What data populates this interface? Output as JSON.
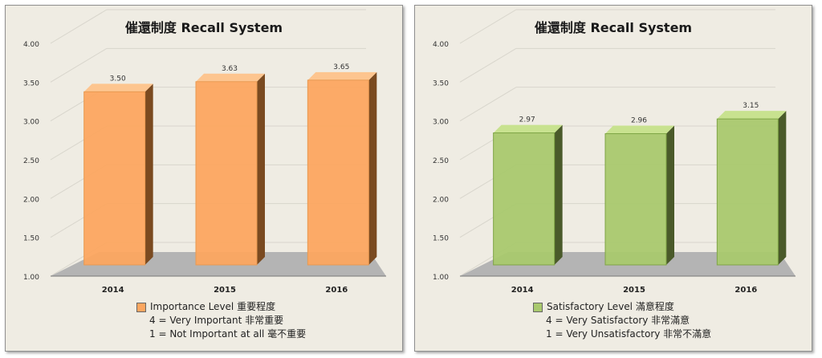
{
  "chart_data": [
    {
      "type": "bar",
      "title": "催還制度  Recall System",
      "categories": [
        "2014",
        "2015",
        "2016"
      ],
      "values": [
        3.5,
        3.63,
        3.65
      ],
      "value_labels": [
        "3.50",
        "3.63",
        "3.65"
      ],
      "ylim": [
        1.0,
        4.0
      ],
      "yticks": [
        "1.00",
        "1.50",
        "2.00",
        "2.50",
        "3.00",
        "3.50",
        "4.00"
      ],
      "xlabel": "",
      "ylabel": "",
      "grid": true,
      "legend": {
        "placement": "bottom",
        "label": "Importance Level 重要程度",
        "notes": [
          "4 = Very Important 非常重要",
          "1 = Not  Important at all 毫不重要"
        ]
      },
      "colors": {
        "face": "#fca660",
        "top": "#fdc58f",
        "side": "#7a4a20",
        "edge": "#e89a52"
      }
    },
    {
      "type": "bar",
      "title": "催還制度  Recall System",
      "categories": [
        "2014",
        "2015",
        "2016"
      ],
      "values": [
        2.97,
        2.96,
        3.15
      ],
      "value_labels": [
        "2.97",
        "2.96",
        "3.15"
      ],
      "ylim": [
        1.0,
        4.0
      ],
      "yticks": [
        "1.00",
        "1.50",
        "2.00",
        "2.50",
        "3.00",
        "3.50",
        "4.00"
      ],
      "xlabel": "",
      "ylabel": "",
      "grid": true,
      "legend": {
        "placement": "bottom",
        "label": "Satisfactory Level 滿意程度",
        "notes": [
          "4 = Very Satisfactory 非常滿意",
          "1 = Very Unsatisfactory 非常不滿意"
        ]
      },
      "colors": {
        "face": "#a9c96e",
        "top": "#c8e28f",
        "side": "#4a5a2a",
        "edge": "#7ea445"
      }
    }
  ]
}
